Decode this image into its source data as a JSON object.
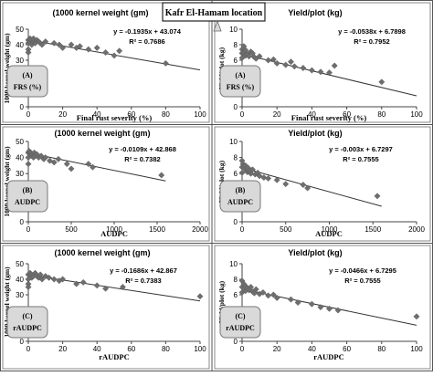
{
  "page": {
    "location_title": "Kafr El-Hamam location"
  },
  "chart_data": [
    {
      "type": "scatter",
      "id": "kw_frs",
      "title": "(1000 kernel weight (gm)",
      "xlabel": "Final rust severity (%)",
      "ylabel": "1000 kernel weight (gm)",
      "xlim": [
        0,
        100
      ],
      "ylim": [
        0,
        50
      ],
      "xticks": [
        0,
        20,
        40,
        60,
        80,
        100
      ],
      "yticks": [
        0,
        10,
        20,
        30,
        40,
        50
      ],
      "grid": false,
      "box_label": [
        "(A)",
        "FRS (%)"
      ],
      "equation": "y = -0.1935x + 43.074",
      "r2": "R² = 0.7686",
      "fit": {
        "slope": -0.1935,
        "intercept": 43.074,
        "x_range": [
          0,
          100
        ]
      },
      "points": [
        [
          0,
          43
        ],
        [
          0,
          41
        ],
        [
          0,
          37
        ],
        [
          0,
          35
        ],
        [
          1,
          42
        ],
        [
          1,
          44
        ],
        [
          2,
          40
        ],
        [
          2,
          43
        ],
        [
          3,
          42
        ],
        [
          3,
          44
        ],
        [
          4,
          41
        ],
        [
          5,
          43
        ],
        [
          6,
          42
        ],
        [
          7,
          41
        ],
        [
          8,
          40
        ],
        [
          10,
          42
        ],
        [
          15,
          41
        ],
        [
          18,
          40
        ],
        [
          20,
          38
        ],
        [
          25,
          40
        ],
        [
          28,
          38
        ],
        [
          30,
          39
        ],
        [
          35,
          37
        ],
        [
          40,
          38
        ],
        [
          45,
          35
        ],
        [
          50,
          33
        ],
        [
          53,
          36
        ],
        [
          80,
          28
        ]
      ]
    },
    {
      "type": "scatter",
      "id": "yield_frs",
      "title": "Yield/plot (kg)",
      "xlabel": "Final rust severity (%)",
      "ylabel": "Yield/plot (kg)",
      "xlim": [
        0,
        100
      ],
      "ylim": [
        0,
        10
      ],
      "xticks": [
        0,
        20,
        40,
        60,
        80,
        100
      ],
      "yticks": [
        0,
        2,
        4,
        6,
        8,
        10
      ],
      "grid": false,
      "box_label": [
        "(A)",
        "FRS (%)"
      ],
      "equation": "y = -0.0538x + 6.7898",
      "r2": "R² = 0.7952",
      "fit": {
        "slope": -0.0538,
        "intercept": 6.7898,
        "x_range": [
          0,
          100
        ]
      },
      "points": [
        [
          0,
          7.4
        ],
        [
          0,
          6.9
        ],
        [
          0,
          6.3
        ],
        [
          1,
          7.8
        ],
        [
          1,
          7.0
        ],
        [
          2,
          6.6
        ],
        [
          2,
          7.3
        ],
        [
          3,
          6.8
        ],
        [
          4,
          6.5
        ],
        [
          5,
          7.1
        ],
        [
          6,
          6.9
        ],
        [
          7,
          6.4
        ],
        [
          8,
          6.2
        ],
        [
          10,
          6.5
        ],
        [
          15,
          6.0
        ],
        [
          18,
          6.1
        ],
        [
          20,
          5.6
        ],
        [
          25,
          5.4
        ],
        [
          28,
          5.8
        ],
        [
          30,
          5.2
        ],
        [
          35,
          5.0
        ],
        [
          40,
          4.7
        ],
        [
          45,
          4.5
        ],
        [
          50,
          4.4
        ],
        [
          53,
          5.3
        ],
        [
          80,
          3.2
        ]
      ]
    },
    {
      "type": "scatter",
      "id": "kw_audpc",
      "title": "(1000 kernel weight (gm)",
      "xlabel": "AUDPC",
      "ylabel": "1000 kernel weight (gm)",
      "xlim": [
        0,
        2000
      ],
      "ylim": [
        0,
        50
      ],
      "xticks": [
        0,
        500,
        1000,
        1500,
        2000
      ],
      "yticks": [
        0,
        10,
        20,
        30,
        40,
        50
      ],
      "grid": false,
      "box_label": [
        "(B)",
        "AUDPC"
      ],
      "equation": "y = -0.0109x + 42.868",
      "r2": "R² = 0.7382",
      "fit": {
        "slope": -0.0109,
        "intercept": 42.868,
        "x_range": [
          0,
          1600
        ]
      },
      "points": [
        [
          0,
          43
        ],
        [
          0,
          40
        ],
        [
          0,
          36
        ],
        [
          10,
          44
        ],
        [
          20,
          42
        ],
        [
          30,
          43
        ],
        [
          40,
          41
        ],
        [
          50,
          42
        ],
        [
          60,
          40
        ],
        [
          70,
          43
        ],
        [
          80,
          41
        ],
        [
          100,
          42
        ],
        [
          120,
          40
        ],
        [
          150,
          41
        ],
        [
          180,
          39
        ],
        [
          200,
          40
        ],
        [
          250,
          38
        ],
        [
          300,
          37
        ],
        [
          350,
          39
        ],
        [
          450,
          36
        ],
        [
          500,
          33
        ],
        [
          700,
          36
        ],
        [
          750,
          34
        ],
        [
          1550,
          29
        ]
      ]
    },
    {
      "type": "scatter",
      "id": "yield_audpc",
      "title": "Yield/plot (kg)",
      "xlabel": "AUDPC",
      "ylabel": "Yield/plot (kg)",
      "xlim": [
        0,
        2000
      ],
      "ylim": [
        0,
        10
      ],
      "xticks": [
        0,
        500,
        1000,
        1500,
        2000
      ],
      "yticks": [
        0,
        2,
        4,
        6,
        8,
        10
      ],
      "grid": false,
      "box_label": [
        "(B)",
        "AUDPC"
      ],
      "equation": "y = -0.003x + 6.7297",
      "r2": "R² = 0.7555",
      "fit": {
        "slope": -0.003,
        "intercept": 6.7297,
        "x_range": [
          0,
          1600
        ]
      },
      "points": [
        [
          0,
          7.6
        ],
        [
          0,
          6.8
        ],
        [
          0,
          6.1
        ],
        [
          10,
          7.2
        ],
        [
          20,
          6.9
        ],
        [
          30,
          6.6
        ],
        [
          40,
          7.0
        ],
        [
          50,
          6.4
        ],
        [
          60,
          6.2
        ],
        [
          70,
          6.7
        ],
        [
          80,
          6.3
        ],
        [
          100,
          6.0
        ],
        [
          120,
          6.5
        ],
        [
          150,
          5.9
        ],
        [
          180,
          6.1
        ],
        [
          200,
          5.7
        ],
        [
          250,
          5.5
        ],
        [
          300,
          5.4
        ],
        [
          400,
          5.2
        ],
        [
          500,
          4.7
        ],
        [
          700,
          4.6
        ],
        [
          750,
          4.2
        ],
        [
          1550,
          3.2
        ]
      ]
    },
    {
      "type": "scatter",
      "id": "kw_raudpc",
      "title": "(1000 kernel weight (gm)",
      "xlabel": "rAUDPC",
      "ylabel": "1000 kernel weight (gm)",
      "xlim": [
        0,
        100
      ],
      "ylim": [
        0,
        50
      ],
      "xticks": [
        0,
        20,
        40,
        60,
        80,
        100
      ],
      "yticks": [
        0,
        10,
        20,
        30,
        40,
        50
      ],
      "grid": false,
      "box_label": [
        "(C)",
        "rAUDPC"
      ],
      "equation": "y = -0.1686x + 42.867",
      "r2": "R² = 0.7383",
      "fit": {
        "slope": -0.1686,
        "intercept": 42.867,
        "x_range": [
          0,
          100
        ]
      },
      "points": [
        [
          0,
          43
        ],
        [
          0,
          40
        ],
        [
          0,
          37
        ],
        [
          0,
          35
        ],
        [
          1,
          44
        ],
        [
          1,
          42
        ],
        [
          2,
          43
        ],
        [
          2,
          41
        ],
        [
          3,
          42
        ],
        [
          4,
          44
        ],
        [
          5,
          42
        ],
        [
          6,
          41
        ],
        [
          7,
          43
        ],
        [
          8,
          40
        ],
        [
          10,
          42
        ],
        [
          12,
          41
        ],
        [
          15,
          40
        ],
        [
          18,
          39
        ],
        [
          20,
          40
        ],
        [
          28,
          37
        ],
        [
          32,
          38
        ],
        [
          40,
          36
        ],
        [
          45,
          34
        ],
        [
          55,
          35
        ],
        [
          100,
          29
        ]
      ]
    },
    {
      "type": "scatter",
      "id": "yield_raudpc",
      "title": "Yield/plot (kg)",
      "xlabel": "rAUDPC",
      "ylabel": "Yield/plot (kg)",
      "xlim": [
        0,
        100
      ],
      "ylim": [
        0,
        10
      ],
      "xticks": [
        0,
        20,
        40,
        60,
        80,
        100
      ],
      "yticks": [
        0,
        2,
        4,
        6,
        8,
        10
      ],
      "grid": false,
      "box_label": [
        "(C)",
        "rAUDPC"
      ],
      "equation": "y = -0.0466x + 6.7295",
      "r2": "R² = 0.7555",
      "fit": {
        "slope": -0.0466,
        "intercept": 6.7295,
        "x_range": [
          0,
          100
        ]
      },
      "points": [
        [
          0,
          7.8
        ],
        [
          0,
          7.0
        ],
        [
          0,
          6.3
        ],
        [
          1,
          7.4
        ],
        [
          1,
          6.8
        ],
        [
          2,
          7.1
        ],
        [
          2,
          6.5
        ],
        [
          3,
          6.9
        ],
        [
          4,
          6.6
        ],
        [
          5,
          7.0
        ],
        [
          6,
          6.4
        ],
        [
          7,
          6.2
        ],
        [
          8,
          6.7
        ],
        [
          10,
          6.1
        ],
        [
          12,
          6.3
        ],
        [
          15,
          5.9
        ],
        [
          18,
          6.0
        ],
        [
          20,
          5.6
        ],
        [
          28,
          5.4
        ],
        [
          32,
          5.0
        ],
        [
          40,
          4.8
        ],
        [
          45,
          4.4
        ],
        [
          50,
          4.2
        ],
        [
          55,
          4.0
        ],
        [
          100,
          3.2
        ]
      ]
    }
  ]
}
